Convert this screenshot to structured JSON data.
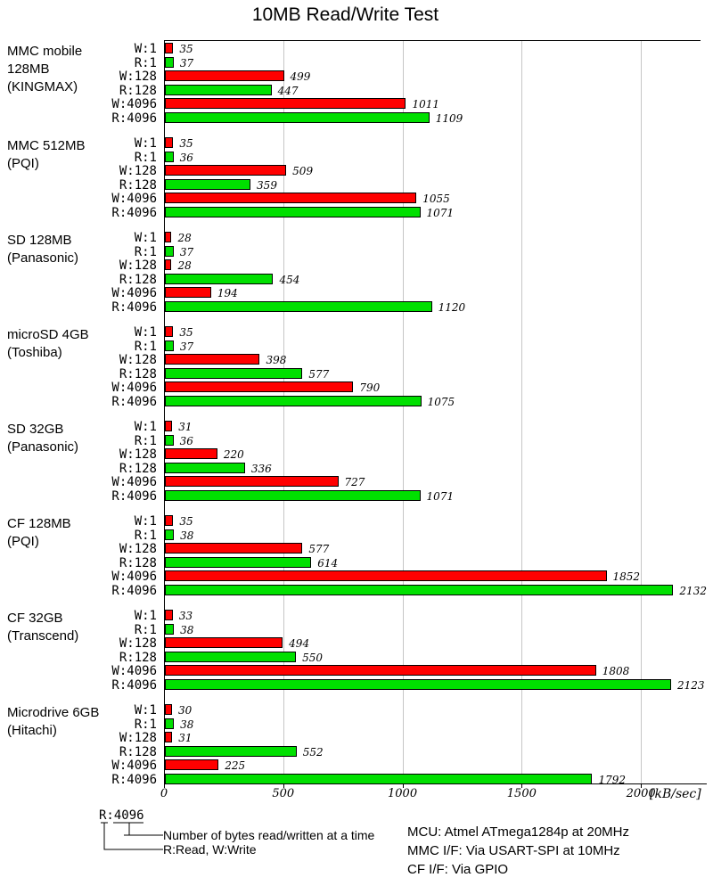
{
  "title": "10MB Read/Write Test",
  "axis": {
    "tick_values": [
      0,
      500,
      1000,
      1500,
      2000
    ],
    "tick_labels": [
      "0",
      "500",
      "1000",
      "1500",
      "2000"
    ],
    "unit_label": "[kB/sec]"
  },
  "colors": {
    "write_bar": "#ff0000",
    "read_bar": "#00e000",
    "grid": "#c6c6c6",
    "axis": "#000000"
  },
  "chart_data": {
    "type": "bar",
    "orientation": "horizontal",
    "title": "10MB Read/Write Test",
    "xlabel": "[kB/sec]",
    "xlim": [
      0,
      2250
    ],
    "grid": true,
    "row_labels": [
      "W:1",
      "R:1",
      "W:128",
      "R:128",
      "W:4096",
      "R:4096"
    ],
    "series_colors": {
      "W": "#ff0000",
      "R": "#00e000"
    },
    "groups": [
      {
        "label_lines": [
          "MMC mobile",
          "128MB",
          "(KINGMAX)"
        ],
        "values": [
          35,
          37,
          499,
          447,
          1011,
          1109
        ]
      },
      {
        "label_lines": [
          "MMC 512MB",
          "(PQI)"
        ],
        "values": [
          35,
          36,
          509,
          359,
          1055,
          1071
        ]
      },
      {
        "label_lines": [
          "SD 128MB",
          "(Panasonic)"
        ],
        "values": [
          28,
          37,
          28,
          454,
          194,
          1120
        ]
      },
      {
        "label_lines": [
          "microSD 4GB",
          "(Toshiba)"
        ],
        "values": [
          35,
          37,
          398,
          577,
          790,
          1075
        ]
      },
      {
        "label_lines": [
          "SD 32GB",
          "(Panasonic)"
        ],
        "values": [
          31,
          36,
          220,
          336,
          727,
          1071
        ]
      },
      {
        "label_lines": [
          "CF 128MB",
          "(PQI)"
        ],
        "values": [
          35,
          38,
          577,
          614,
          1852,
          2132
        ]
      },
      {
        "label_lines": [
          "CF 32GB",
          "(Transcend)"
        ],
        "values": [
          33,
          38,
          494,
          550,
          1808,
          2123
        ]
      },
      {
        "label_lines": [
          "Microdrive 6GB",
          "(Hitachi)"
        ],
        "values": [
          30,
          38,
          31,
          552,
          225,
          1792
        ]
      }
    ]
  },
  "legend": {
    "sample_label": "R:4096",
    "note_bytes": "Number of bytes read/written at a time",
    "note_rw": "R:Read, W:Write"
  },
  "footer": {
    "lines": [
      "MCU: Atmel ATmega1284p at 20MHz",
      "MMC I/F: Via USART-SPI at 10MHz",
      "CF I/F: Via GPIO"
    ]
  }
}
